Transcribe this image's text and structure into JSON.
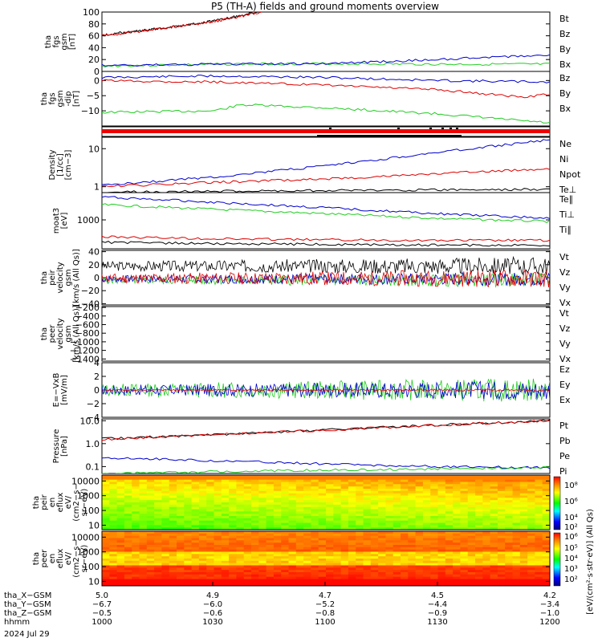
{
  "title": "P5 (TH-A) fields and ground moments overview",
  "colors": {
    "black": "#000000",
    "red": "#dd0000",
    "green": "#22cc22",
    "blue": "#0000cc"
  },
  "panels": [
    {
      "id": "p1",
      "top": 15,
      "bottom": 89,
      "ylabel": [
        "tha",
        "fgs",
        "gsm",
        "[nT]"
      ],
      "ylim": [
        0,
        100
      ],
      "scale": "linear",
      "ticks": [
        {
          "v": 100,
          "l": "100"
        },
        {
          "v": 80,
          "l": "80"
        },
        {
          "v": 60,
          "l": "60"
        },
        {
          "v": 40,
          "l": "40"
        },
        {
          "v": 20,
          "l": "20"
        },
        {
          "v": 0,
          "l": "0"
        }
      ],
      "legend": [
        {
          "t": "Bt",
          "c": "black"
        },
        {
          "t": "Bz",
          "c": "red"
        },
        {
          "t": "By",
          "c": "green"
        },
        {
          "t": "Bx",
          "c": "blue"
        }
      ],
      "series": [
        {
          "c": "black",
          "x": [
            5.0,
            4.9,
            4.8,
            4.75,
            4.71
          ],
          "y": [
            61,
            72,
            85,
            94,
            103
          ]
        },
        {
          "c": "red",
          "x": [
            5.0,
            4.9,
            4.8,
            4.75,
            4.71
          ],
          "y": [
            60,
            71,
            84,
            93,
            102
          ]
        },
        {
          "c": "green",
          "x": [
            5.0,
            4.8,
            4.6,
            4.4,
            4.2
          ],
          "y": [
            9,
            12,
            13,
            12,
            12
          ]
        },
        {
          "c": "blue",
          "x": [
            5.0,
            4.8,
            4.6,
            4.4,
            4.2
          ],
          "y": [
            10,
            12,
            13,
            20,
            28
          ]
        }
      ]
    },
    {
      "id": "p2",
      "top": 89,
      "bottom": 157,
      "ylabel": [
        "tha",
        "fgs",
        "gsm",
        "-dip",
        "[nT]"
      ],
      "ylim": [
        -15,
        3
      ],
      "scale": "linear",
      "ticks": [
        {
          "v": 0,
          "l": "0"
        },
        {
          "v": -5,
          "l": "−5"
        },
        {
          "v": -10,
          "l": "−10"
        }
      ],
      "legend": [
        {
          "t": "Bz",
          "c": "red"
        },
        {
          "t": "By",
          "c": "green"
        },
        {
          "t": "Bx",
          "c": "blue"
        }
      ],
      "series": [
        {
          "c": "blue",
          "x": [
            5.0,
            4.8,
            4.6,
            4.4,
            4.2
          ],
          "y": [
            1,
            1.5,
            1,
            0,
            -0.5
          ]
        },
        {
          "c": "red",
          "x": [
            5.0,
            4.8,
            4.6,
            4.4,
            4.25,
            4.2
          ],
          "y": [
            0,
            -0.5,
            -1.5,
            -3,
            -5.5,
            -4.5
          ]
        },
        {
          "c": "green",
          "x": [
            5.0,
            4.8,
            4.75,
            4.6,
            4.4,
            4.2
          ],
          "y": [
            -10.5,
            -10,
            -8,
            -9,
            -11,
            -14
          ]
        }
      ]
    },
    {
      "id": "p4",
      "top": 171,
      "bottom": 240,
      "ylabel": [
        "Density",
        "[1/cc]",
        "[cm−3]"
      ],
      "ylim": [
        0.7,
        20
      ],
      "scale": "log",
      "ticks": [
        {
          "v": 10,
          "l": "10"
        },
        {
          "v": 1,
          "l": "1"
        }
      ],
      "legend": [
        {
          "t": "Ne",
          "c": "red"
        },
        {
          "t": "Ni",
          "c": "black"
        },
        {
          "t": "Npot",
          "c": "blue"
        },
        {
          "t": "Te⊥",
          "c": "red"
        }
      ],
      "series": [
        {
          "c": "blue",
          "x": [
            5.0,
            4.8,
            4.6,
            4.4,
            4.2
          ],
          "y": [
            1.1,
            1.8,
            3.5,
            8,
            17
          ]
        },
        {
          "c": "red",
          "x": [
            5.0,
            4.8,
            4.6,
            4.4,
            4.2
          ],
          "y": [
            1.0,
            1.3,
            1.6,
            2.2,
            3.0
          ]
        },
        {
          "c": "black",
          "x": [
            5.0,
            4.6,
            4.2
          ],
          "y": [
            0.72,
            0.8,
            0.85
          ]
        }
      ]
    },
    {
      "id": "p5",
      "top": 240,
      "bottom": 310,
      "ylabel": [
        "moat3",
        "[eV]"
      ],
      "ylim": [
        150,
        6000
      ],
      "scale": "log",
      "ticks": [
        {
          "v": 1000,
          "l": "1000"
        }
      ],
      "legend": [
        {
          "t": "Te∥",
          "c": "black"
        },
        {
          "t": "Ti⊥",
          "c": "red"
        },
        {
          "t": "Ti∥",
          "c": "green"
        }
      ],
      "series": [
        {
          "c": "blue",
          "x": [
            5.0,
            4.8,
            4.6,
            4.4,
            4.2
          ],
          "y": [
            4500,
            3200,
            2200,
            1500,
            1100
          ]
        },
        {
          "c": "green",
          "x": [
            5.0,
            4.8,
            4.6,
            4.4,
            4.2
          ],
          "y": [
            2700,
            2000,
            1500,
            1100,
            900
          ]
        },
        {
          "c": "red",
          "x": [
            5.0,
            4.8,
            4.6,
            4.4,
            4.2
          ],
          "y": [
            330,
            290,
            270,
            260,
            260
          ]
        },
        {
          "c": "black",
          "x": [
            5.0,
            4.8,
            4.6,
            4.4,
            4.2
          ],
          "y": [
            230,
            210,
            200,
            190,
            190
          ]
        }
      ]
    },
    {
      "id": "p6",
      "top": 312,
      "bottom": 380,
      "ylabel": [
        "tha",
        "peir",
        "velocity",
        "gsm",
        "[km/s (All Qs)]"
      ],
      "ylim": [
        -42,
        42
      ],
      "scale": "linear",
      "ticks": [
        {
          "v": 40,
          "l": "40"
        },
        {
          "v": 20,
          "l": "20"
        },
        {
          "v": 0,
          "l": "0"
        },
        {
          "v": -20,
          "l": "−20"
        },
        {
          "v": -40,
          "l": "−40"
        }
      ],
      "legend": [
        {
          "t": "Vt",
          "c": "black"
        },
        {
          "t": "Vz",
          "c": "red"
        },
        {
          "t": "Vy",
          "c": "green"
        },
        {
          "t": "Vx",
          "c": "blue"
        }
      ],
      "noise": [
        {
          "c": "black",
          "base": 18,
          "amp": 12,
          "seed": 3
        },
        {
          "c": "green",
          "base": -4,
          "amp": 9,
          "seed": 5
        },
        {
          "c": "blue",
          "base": -2,
          "amp": 9,
          "seed": 7
        },
        {
          "c": "red",
          "base": -1,
          "amp": 12,
          "seed": 11
        }
      ]
    },
    {
      "id": "p7",
      "top": 382,
      "bottom": 450,
      "ylabel": [
        "tha",
        "peer",
        "velocity",
        "gsm",
        "[km/s (All Qs)]"
      ],
      "ylim": [
        -1450,
        -180
      ],
      "scale": "linear",
      "ticks": [
        {
          "v": -200,
          "l": "−200"
        },
        {
          "v": -400,
          "l": "−400"
        },
        {
          "v": -600,
          "l": "−600"
        },
        {
          "v": -800,
          "l": "−800"
        },
        {
          "v": -1000,
          "l": "−1000"
        },
        {
          "v": -1200,
          "l": "−1200"
        },
        {
          "v": -1400,
          "l": "−1400"
        }
      ],
      "legend": [
        {
          "t": "Vt",
          "c": "black"
        },
        {
          "t": "Vz",
          "c": "red"
        },
        {
          "t": "Vy",
          "c": "green"
        },
        {
          "t": "Vx",
          "c": "blue"
        }
      ]
    },
    {
      "id": "p8",
      "top": 452,
      "bottom": 520,
      "ylabel": [
        "E=−VxB",
        "[mV/m]"
      ],
      "ylim": [
        -4,
        4
      ],
      "scale": "linear",
      "ticks": [
        {
          "v": 4,
          "l": "4"
        },
        {
          "v": 2,
          "l": "2"
        },
        {
          "v": 0,
          "l": "0"
        },
        {
          "v": -2,
          "l": "−2"
        },
        {
          "v": -4,
          "l": "−4"
        }
      ],
      "legend": [
        {
          "t": "Ez",
          "c": "red"
        },
        {
          "t": "Ey",
          "c": "green"
        },
        {
          "t": "Ex",
          "c": "blue"
        }
      ],
      "noise": [
        {
          "c": "green",
          "base": 0,
          "amp": 1.5,
          "seed": 13
        },
        {
          "c": "blue",
          "base": 0,
          "amp": 1.2,
          "seed": 17
        },
        {
          "c": "red",
          "base": 0,
          "amp": 0.15,
          "seed": 19
        }
      ]
    },
    {
      "id": "p9",
      "top": 522,
      "bottom": 590,
      "ylabel": [
        "Pressure",
        "[nPa]"
      ],
      "ylim": [
        0.05,
        12
      ],
      "scale": "log",
      "ticks": [
        {
          "v": 10,
          "l": "10.0"
        },
        {
          "v": 1,
          "l": "1.0"
        },
        {
          "v": 0.1,
          "l": "0.1"
        }
      ],
      "legend": [
        {
          "t": "Pt",
          "c": "black"
        },
        {
          "t": "Pb",
          "c": "red"
        },
        {
          "t": "Pe",
          "c": "green"
        },
        {
          "t": "Pi",
          "c": "blue"
        }
      ],
      "series": [
        {
          "c": "black",
          "x": [
            5.0,
            4.8,
            4.6,
            4.4,
            4.2
          ],
          "y": [
            1.6,
            2.5,
            4,
            6.5,
            10
          ]
        },
        {
          "c": "red",
          "x": [
            5.0,
            4.8,
            4.6,
            4.4,
            4.2
          ],
          "y": [
            1.55,
            2.45,
            3.9,
            6.4,
            9.8
          ]
        },
        {
          "c": "blue",
          "x": [
            5.0,
            4.8,
            4.6,
            4.4,
            4.2
          ],
          "y": [
            0.25,
            0.18,
            0.13,
            0.1,
            0.09
          ]
        },
        {
          "c": "green",
          "x": [
            5.0,
            4.8,
            4.6,
            4.4,
            4.2
          ],
          "y": [
            0.05,
            0.06,
            0.07,
            0.08,
            0.09
          ]
        }
      ]
    },
    {
      "id": "p10",
      "top": 592,
      "bottom": 660,
      "ylabel": [
        "tha",
        "peir",
        "en",
        "eflux",
        "eV/",
        "(cm2−s−",
        "sr−eV)"
      ],
      "ylim": [
        5,
        25000
      ],
      "scale": "log",
      "ticks": [
        {
          "v": 10000,
          "l": "10000"
        },
        {
          "v": 1000,
          "l": "1000"
        },
        {
          "v": 100,
          "l": "100"
        },
        {
          "v": 10,
          "l": "10"
        }
      ],
      "legend": []
    },
    {
      "id": "p11",
      "top": 662,
      "bottom": 730,
      "ylabel": [
        "tha",
        "peer",
        "en",
        "eflux",
        "eV/",
        "(cm2−s−",
        "sr−eV)"
      ],
      "ylim": [
        5,
        25000
      ],
      "scale": "log",
      "ticks": [
        {
          "v": 10000,
          "l": "10000"
        },
        {
          "v": 1000,
          "l": "1000"
        },
        {
          "v": 100,
          "l": "100"
        },
        {
          "v": 10,
          "l": "10"
        }
      ],
      "legend": []
    }
  ],
  "quality_bar": {
    "top": 158,
    "bottom": 170
  },
  "colorbar": {
    "labels": [
      "10⁸",
      "10⁶",
      "10⁴",
      "10²",
      "10⁶",
      "10⁵",
      "10⁴",
      "10³",
      "10²"
    ],
    "unit": "[eV/(cm²·s·str·eV)] (All Qs)"
  },
  "xaxis": {
    "xlim": [
      5.0,
      4.2
    ],
    "rows": [
      {
        "name": "tha_X−GSM",
        "vals": [
          "5.0",
          "4.9",
          "4.7",
          "4.5",
          "4.2"
        ]
      },
      {
        "name": "tha_Y−GSM",
        "vals": [
          "−6.7",
          "−6.0",
          "−5.2",
          "−4.4",
          "−3.4"
        ]
      },
      {
        "name": "tha_Z−GSM",
        "vals": [
          "−0.5",
          "−0.6",
          "−0.8",
          "−0.9",
          "−1.0"
        ]
      },
      {
        "name": "hhmm",
        "vals": [
          "1000",
          "1030",
          "1100",
          "1130",
          "1200"
        ]
      }
    ],
    "date": "2024 Jul 29"
  }
}
